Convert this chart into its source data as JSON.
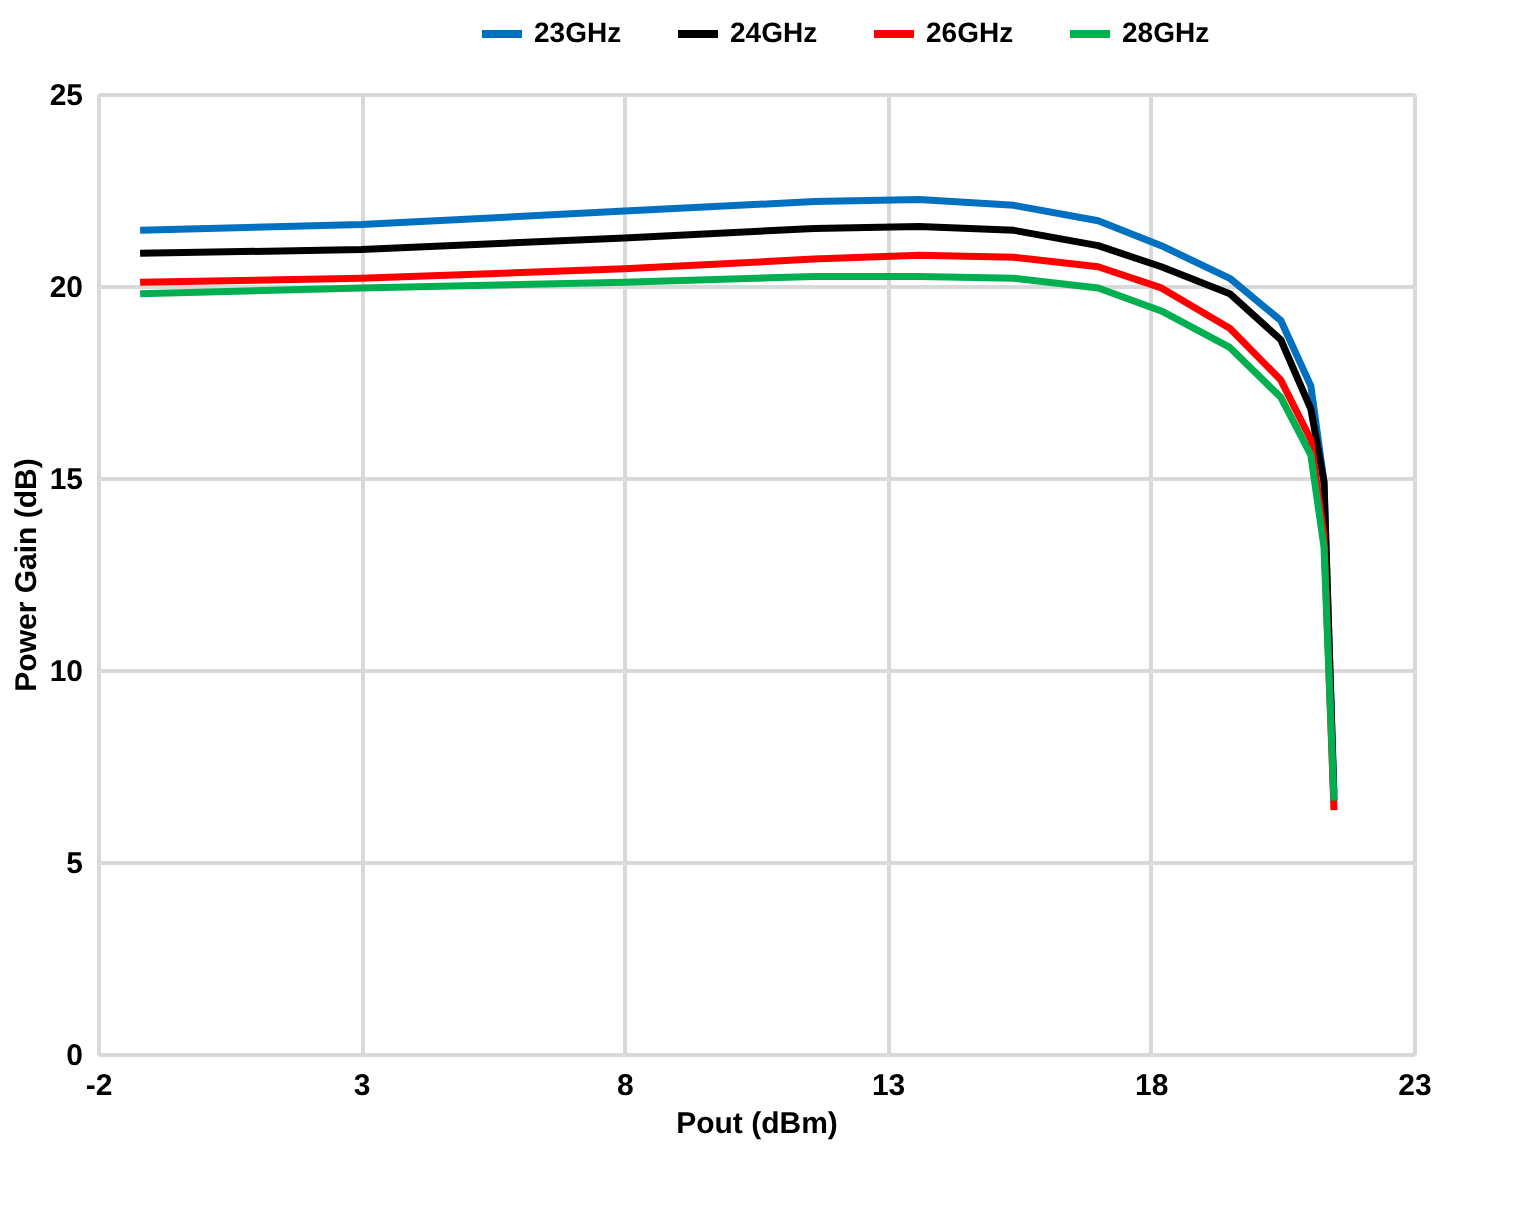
{
  "chart_data": {
    "type": "line",
    "xlabel": "Pout (dBm)",
    "ylabel": "Power Gain (dB)",
    "x": [
      -1.2,
      3,
      8,
      11.6,
      13.6,
      15.4,
      17,
      18.2,
      19.5,
      20.47,
      21.04,
      21.29,
      21.48
    ],
    "series": [
      {
        "name": "23GHz",
        "color": "#0070c0",
        "values": [
          21.45,
          21.6,
          21.95,
          22.2,
          22.25,
          22.1,
          21.7,
          21.05,
          20.2,
          19.1,
          17.4,
          14.9,
          6.8
        ]
      },
      {
        "name": "24GHz",
        "color": "#000000",
        "values": [
          20.85,
          20.95,
          21.25,
          21.5,
          21.55,
          21.45,
          21.05,
          20.5,
          19.8,
          18.6,
          16.8,
          14.9,
          6.6
        ]
      },
      {
        "name": "26GHz",
        "color": "#ff0000",
        "values": [
          20.1,
          20.2,
          20.45,
          20.7,
          20.8,
          20.75,
          20.5,
          19.95,
          18.9,
          17.55,
          16.0,
          13.5,
          6.35
        ]
      },
      {
        "name": "28GHz",
        "color": "#00b050",
        "values": [
          19.8,
          19.95,
          20.1,
          20.25,
          20.25,
          20.2,
          19.95,
          19.35,
          18.4,
          17.1,
          15.6,
          13.2,
          6.6
        ]
      }
    ],
    "xlim": [
      -2,
      23
    ],
    "xticks": [
      -2,
      3,
      8,
      13,
      18,
      23
    ],
    "ylim": [
      0,
      25
    ],
    "yticks": [
      0,
      5,
      10,
      15,
      20,
      25
    ],
    "grid": true,
    "legend": "top",
    "marker": "none",
    "line_style": "solid"
  }
}
